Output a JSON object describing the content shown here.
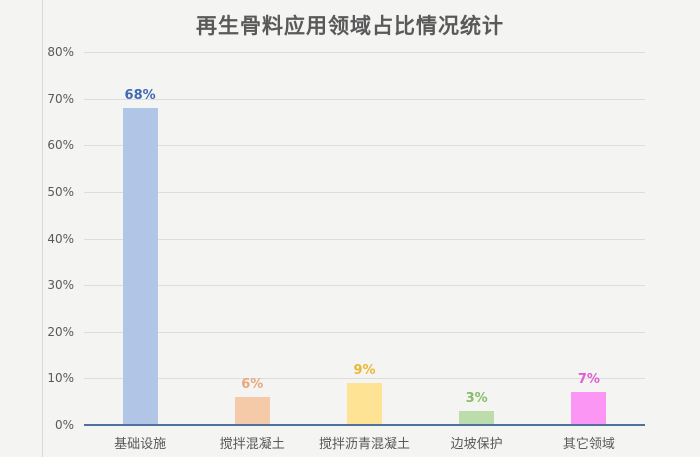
{
  "page": {
    "background": "#f4f4f2"
  },
  "chart_data": {
    "type": "bar",
    "title": "再生骨料应用领域占比情况统计",
    "categories": [
      "基础设施",
      "搅拌混凝土",
      "搅拌沥青混凝土",
      "边坡保护",
      "其它领域"
    ],
    "values": [
      68,
      6,
      9,
      3,
      7
    ],
    "value_labels": [
      "68%",
      "6%",
      "9%",
      "3%",
      "7%"
    ],
    "bar_colors": [
      "#b1c5e7",
      "#f5caa9",
      "#ffe395",
      "#bddcab",
      "#fc96f4"
    ],
    "value_label_colors": [
      "#3f6ab3",
      "#e7a97d",
      "#e8ba31",
      "#87bc69",
      "#e25cd8"
    ],
    "xlabel": "",
    "ylabel": "",
    "y_tick_labels": [
      "0%",
      "10%",
      "20%",
      "30%",
      "40%",
      "50%",
      "60%",
      "70%",
      "80%"
    ],
    "y_tick_values": [
      0,
      10,
      20,
      30,
      40,
      50,
      60,
      70,
      80
    ],
    "ylim": [
      0,
      80
    ],
    "grid": true,
    "legend": "none",
    "gridline_color": "#dedddb",
    "axis_color": "#4f719b",
    "tick_label_color": "#595959",
    "title_color": "#595959"
  }
}
